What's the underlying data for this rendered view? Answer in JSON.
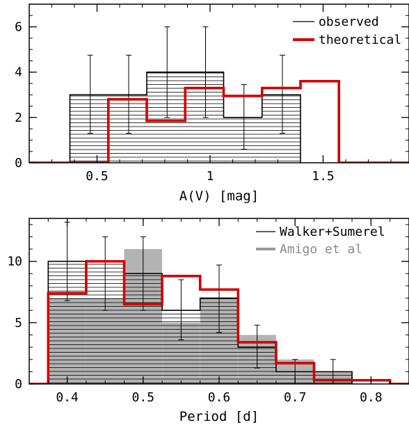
{
  "chart_data": [
    {
      "type": "bar",
      "style": "step-histogram",
      "xlabel": "A(V) [mag]",
      "ylabel": "",
      "xlim": [
        0.2,
        1.88
      ],
      "ylim": [
        0,
        7
      ],
      "xticks": [
        0.5,
        1,
        1.5
      ],
      "xtick_labels": [
        "0.5",
        "1",
        "1.5"
      ],
      "yticks": [
        0,
        2,
        4,
        6
      ],
      "ytick_labels": [
        "0",
        "2",
        "4",
        "6"
      ],
      "legend_position": "top-right",
      "series": [
        {
          "name": "observed",
          "kind": "hatched-histogram",
          "color": "#000000",
          "edges": [
            0.38,
            0.72,
            1.06,
            1.23,
            1.4
          ],
          "values": [
            3,
            4,
            2,
            3
          ],
          "errorbars": [
            {
              "x": 0.47,
              "y": 3,
              "low": 1.3,
              "high": 4.75
            },
            {
              "x": 0.64,
              "y": 3,
              "low": 1.3,
              "high": 4.75
            },
            {
              "x": 0.81,
              "y": 4,
              "low": 2.0,
              "high": 6.0
            },
            {
              "x": 0.98,
              "y": 4,
              "low": 2.0,
              "high": 6.0
            },
            {
              "x": 1.15,
              "y": 2,
              "low": 0.6,
              "high": 3.45
            },
            {
              "x": 1.32,
              "y": 3,
              "low": 1.3,
              "high": 4.75
            }
          ]
        },
        {
          "name": "theoretical",
          "kind": "step-line",
          "color": "#d40000",
          "x": [
            0.2,
            0.55,
            0.55,
            0.72,
            0.72,
            0.89,
            0.89,
            1.06,
            1.06,
            1.23,
            1.23,
            1.4,
            1.4,
            1.57,
            1.57,
            1.88
          ],
          "y": [
            0,
            0,
            2.8,
            2.8,
            1.85,
            1.85,
            3.3,
            3.3,
            2.95,
            2.95,
            3.3,
            3.3,
            3.6,
            3.6,
            0,
            0
          ]
        }
      ]
    },
    {
      "type": "bar",
      "style": "step-histogram",
      "xlabel": "Period [d]",
      "ylabel": "",
      "xlim": [
        0.35,
        0.85
      ],
      "ylim": [
        0,
        13.5
      ],
      "xticks": [
        0.4,
        0.5,
        0.6,
        0.7,
        0.8
      ],
      "xtick_labels": [
        "0.4",
        "0.5",
        "0.6",
        "0.7",
        "0.8"
      ],
      "yticks": [
        0,
        5,
        10
      ],
      "ytick_labels": [
        "0",
        "5",
        "10"
      ],
      "legend_position": "top-right",
      "series": [
        {
          "name": "Amigo et al",
          "kind": "filled-histogram",
          "color": "#b3b3b3",
          "edges": [
            0.375,
            0.425,
            0.475,
            0.525,
            0.575,
            0.625,
            0.675,
            0.725,
            0.775
          ],
          "values": [
            7,
            7,
            11,
            5,
            7,
            4,
            2,
            1
          ]
        },
        {
          "name": "Walker+Sumerel",
          "kind": "hatched-histogram",
          "color": "#000000",
          "edges": [
            0.375,
            0.425,
            0.475,
            0.525,
            0.575,
            0.625,
            0.675,
            0.725,
            0.775
          ],
          "values": [
            10,
            10,
            9,
            6,
            7,
            3,
            1,
            1
          ],
          "errorbars": [
            {
              "x": 0.4,
              "y": 10,
              "low": 6.8,
              "high": 13.2
            },
            {
              "x": 0.45,
              "y": 10,
              "low": 6.0,
              "high": 12.0
            },
            {
              "x": 0.5,
              "y": 9,
              "low": 6.0,
              "high": 12.0
            },
            {
              "x": 0.55,
              "y": 6,
              "low": 3.6,
              "high": 8.5
            },
            {
              "x": 0.6,
              "y": 7,
              "low": 4.2,
              "high": 9.7
            },
            {
              "x": 0.65,
              "y": 3,
              "low": 1.3,
              "high": 4.8
            },
            {
              "x": 0.7,
              "y": 1,
              "low": 0.0,
              "high": 2.0
            },
            {
              "x": 0.75,
              "y": 1,
              "low": 0.0,
              "high": 2.0
            }
          ]
        },
        {
          "name": "theoretical",
          "kind": "step-line",
          "color": "#d40000",
          "x": [
            0.35,
            0.375,
            0.375,
            0.425,
            0.425,
            0.475,
            0.475,
            0.525,
            0.525,
            0.575,
            0.575,
            0.625,
            0.625,
            0.675,
            0.675,
            0.725,
            0.725,
            0.825,
            0.825,
            0.85
          ],
          "y": [
            0,
            0,
            7.4,
            7.4,
            10.0,
            10.0,
            6.5,
            6.5,
            8.8,
            8.8,
            7.7,
            7.7,
            3.4,
            3.4,
            1.7,
            1.7,
            0.3,
            0.3,
            0,
            0
          ]
        }
      ]
    }
  ]
}
